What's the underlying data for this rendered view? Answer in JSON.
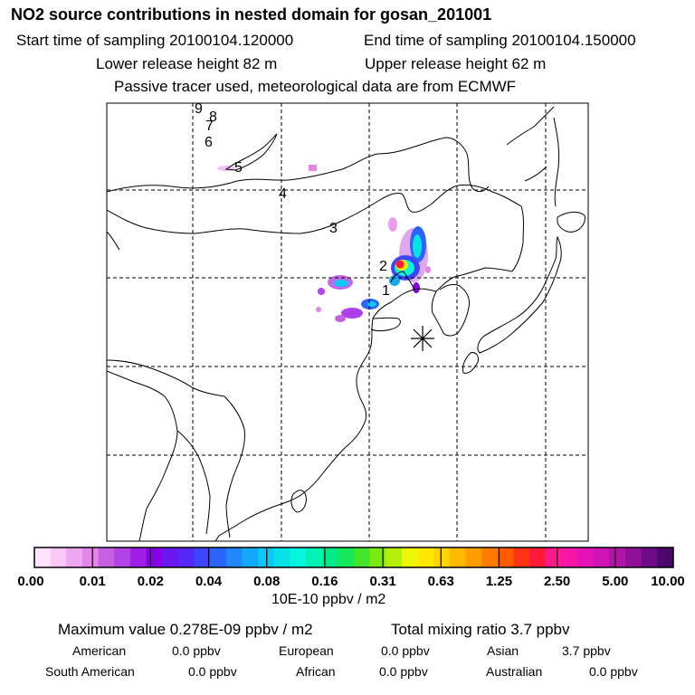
{
  "header": {
    "title": "NO2 source contributions in nested domain for gosan_201001",
    "start_time": "Start time of sampling 20100104.120000",
    "end_time": "End time of sampling 20100104.150000",
    "lower_release": "Lower release height   82 m",
    "upper_release": "Upper release height   62 m",
    "tracer_note": "Passive tracer used, meteorological data are from ECMWF"
  },
  "colors": {
    "scale": [
      "#fde4fc",
      "#f7c8f6",
      "#eea7ee",
      "#e585e8",
      "#c65fe0",
      "#b343e6",
      "#a01ee6",
      "#8a00e6",
      "#6a18f2",
      "#5528f7",
      "#3c46fa",
      "#2a64fb",
      "#2088fb",
      "#14a8f8",
      "#0cc8f3",
      "#06e3e6",
      "#04f6dc",
      "#02f3b2",
      "#02ea8a",
      "#14e85a",
      "#44e62a",
      "#7cea12",
      "#b4f00a",
      "#ecf608",
      "#ffe800",
      "#ffd400",
      "#ffba00",
      "#ff9c00",
      "#ff7c00",
      "#ff5a00",
      "#ff3414",
      "#ff1a3c",
      "#ff1a8c",
      "#f816a8",
      "#e414b4",
      "#cc14b4",
      "#b014a8",
      "#90109a",
      "#6e0c88",
      "#4a0868"
    ],
    "map_lines": "#000000",
    "grid": "#000000"
  },
  "colorbar": {
    "tick_labels": [
      "0.00",
      "0.01",
      "0.02",
      "0.04",
      "0.08",
      "0.16",
      "0.31",
      "0.63",
      "1.25",
      "2.50",
      "5.00",
      "10.00"
    ],
    "unit": "10E-10 ppbv / m2"
  },
  "trajectory_labels": [
    "1",
    "2",
    "3",
    "4",
    "5",
    "6",
    "7",
    "8",
    "9"
  ],
  "receptor_marker": "asterisk-receptor-icon",
  "summary": {
    "max_value": "Maximum value  0.278E-09 ppbv / m2",
    "total_mixing": "Total mixing ratio       3.7 ppbv",
    "regions": [
      {
        "name": "American",
        "value": "0.0 ppbv"
      },
      {
        "name": "European",
        "value": "0.0 ppbv"
      },
      {
        "name": "Asian",
        "value": "3.7 ppbv"
      },
      {
        "name": "South American",
        "value": "0.0 ppbv"
      },
      {
        "name": "African",
        "value": "0.0 ppbv"
      },
      {
        "name": "Australian",
        "value": "0.0 ppbv"
      }
    ]
  }
}
